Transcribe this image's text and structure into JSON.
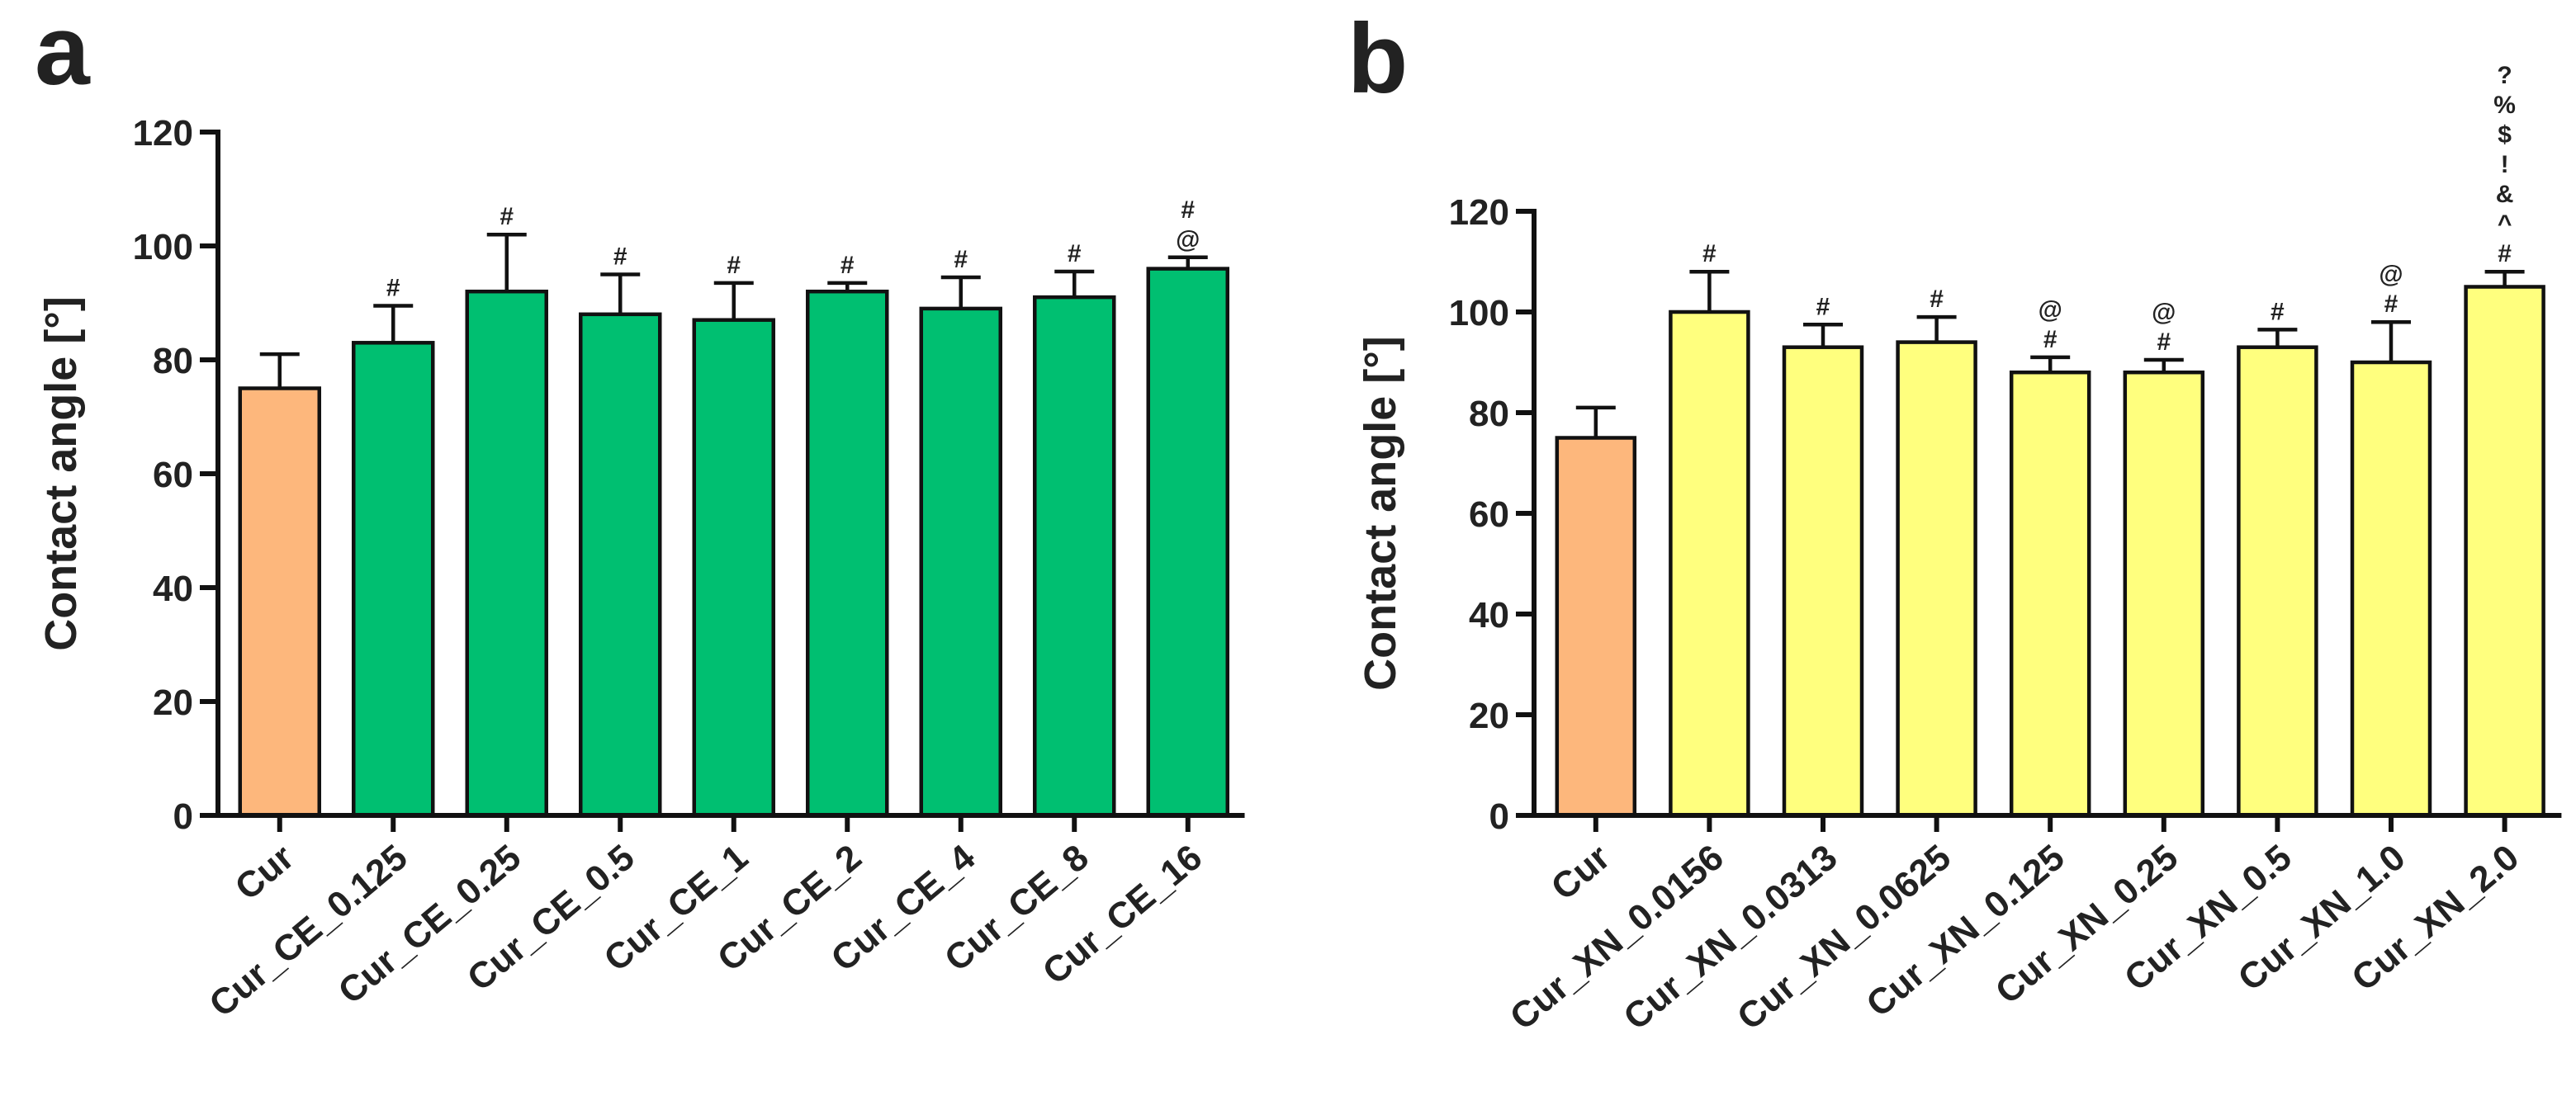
{
  "chart_data": [
    {
      "type": "bar",
      "panel_label": "a",
      "ylabel": "Contact angle [°]",
      "xlabel": "",
      "ylim": [
        0,
        120
      ],
      "yticks": [
        0,
        20,
        40,
        60,
        80,
        100,
        120
      ],
      "categories": [
        "Cur",
        "Cur_CE_0.125",
        "Cur_CE_0.25",
        "Cur_CE_0.5",
        "Cur_CE_1",
        "Cur_CE_2",
        "Cur_CE_4",
        "Cur_CE_8",
        "Cur_CE_16"
      ],
      "values": [
        75,
        83,
        92,
        88,
        87,
        92,
        89,
        91,
        96
      ],
      "errors": [
        6,
        6.5,
        10,
        7,
        6.5,
        1.5,
        5.5,
        4.5,
        2
      ],
      "bar_colors": [
        "#FDB77C",
        "#00BF71",
        "#00BF71",
        "#00BF71",
        "#00BF71",
        "#00BF71",
        "#00BF71",
        "#00BF71",
        "#00BF71"
      ],
      "annotations": [
        [],
        [
          "#"
        ],
        [
          "#"
        ],
        [
          "#"
        ],
        [
          "#"
        ],
        [
          "#"
        ],
        [
          "#"
        ],
        [
          "#"
        ],
        [
          "@",
          "#"
        ]
      ]
    },
    {
      "type": "bar",
      "panel_label": "b",
      "ylabel": "Contact angle [°]",
      "xlabel": "",
      "ylim": [
        0,
        120
      ],
      "yticks": [
        0,
        20,
        40,
        60,
        80,
        100,
        120
      ],
      "categories": [
        "Cur",
        "Cur_XN_0.0156",
        "Cur_XN_0.0313",
        "Cur_XN_0.0625",
        "Cur_XN_0.125",
        "Cur_XN_0.25",
        "Cur_XN_0.5",
        "Cur_XN_1.0",
        "Cur_XN_2.0"
      ],
      "values": [
        75,
        100,
        93,
        94,
        88,
        88,
        93,
        90,
        105
      ],
      "errors": [
        6,
        8,
        4.5,
        5,
        3,
        2.5,
        3.5,
        8,
        3
      ],
      "bar_colors": [
        "#FDB77C",
        "#FFFF7E",
        "#FFFF7E",
        "#FFFF7E",
        "#FFFF7E",
        "#FFFF7E",
        "#FFFF7E",
        "#FFFF7E",
        "#FFFF7E"
      ],
      "annotations": [
        [],
        [
          "#"
        ],
        [
          "#"
        ],
        [
          "#"
        ],
        [
          "#",
          "@"
        ],
        [
          "#",
          "@"
        ],
        [
          "#"
        ],
        [
          "#",
          "@"
        ],
        [
          "#",
          "^",
          "&",
          "!",
          "$",
          "%",
          "?"
        ]
      ]
    }
  ]
}
